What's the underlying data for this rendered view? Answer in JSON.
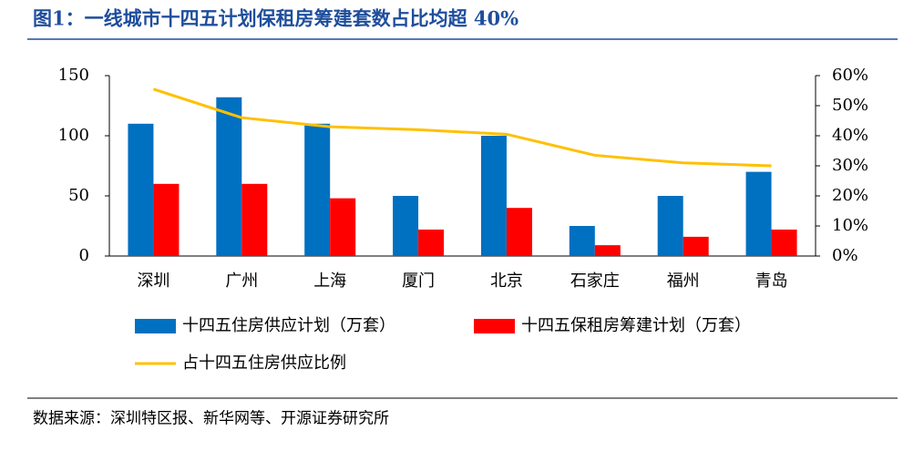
{
  "chart_data": {
    "type": "bar",
    "title": "图1：一线城市十四五计划保租房筹建套数占比均超 40%",
    "source": "数据来源：深圳特区报、新华网等、开源证券研究所",
    "categories": [
      "深圳",
      "广州",
      "上海",
      "厦门",
      "北京",
      "石家庄",
      "福州",
      "青岛"
    ],
    "series": [
      {
        "name": "十四五住房供应计划（万套）",
        "type": "bar",
        "color": "#0070c0",
        "values": [
          110,
          132,
          110,
          50,
          100,
          25,
          50,
          70
        ]
      },
      {
        "name": "十四五保租房筹建计划（万套）",
        "type": "bar",
        "color": "#ff0000",
        "values": [
          60,
          60,
          48,
          22,
          40,
          9,
          16,
          22
        ]
      },
      {
        "name": "占十四五住房供应比例",
        "type": "line",
        "color": "#ffc000",
        "axis": "y2",
        "values": [
          55.5,
          46,
          43,
          42,
          40.5,
          33.5,
          31,
          30
        ]
      }
    ],
    "ylim": [
      0,
      150
    ],
    "yticks": [
      0,
      50,
      100,
      150
    ],
    "y2lim": [
      0,
      60
    ],
    "y2ticks": [
      {
        "value": 0,
        "label": "0%"
      },
      {
        "value": 10,
        "label": "10%"
      },
      {
        "value": 20,
        "label": "20%"
      },
      {
        "value": 30,
        "label": "30%"
      },
      {
        "value": 40,
        "label": "40%"
      },
      {
        "value": 50,
        "label": "50%"
      },
      {
        "value": 60,
        "label": "60%"
      }
    ]
  }
}
